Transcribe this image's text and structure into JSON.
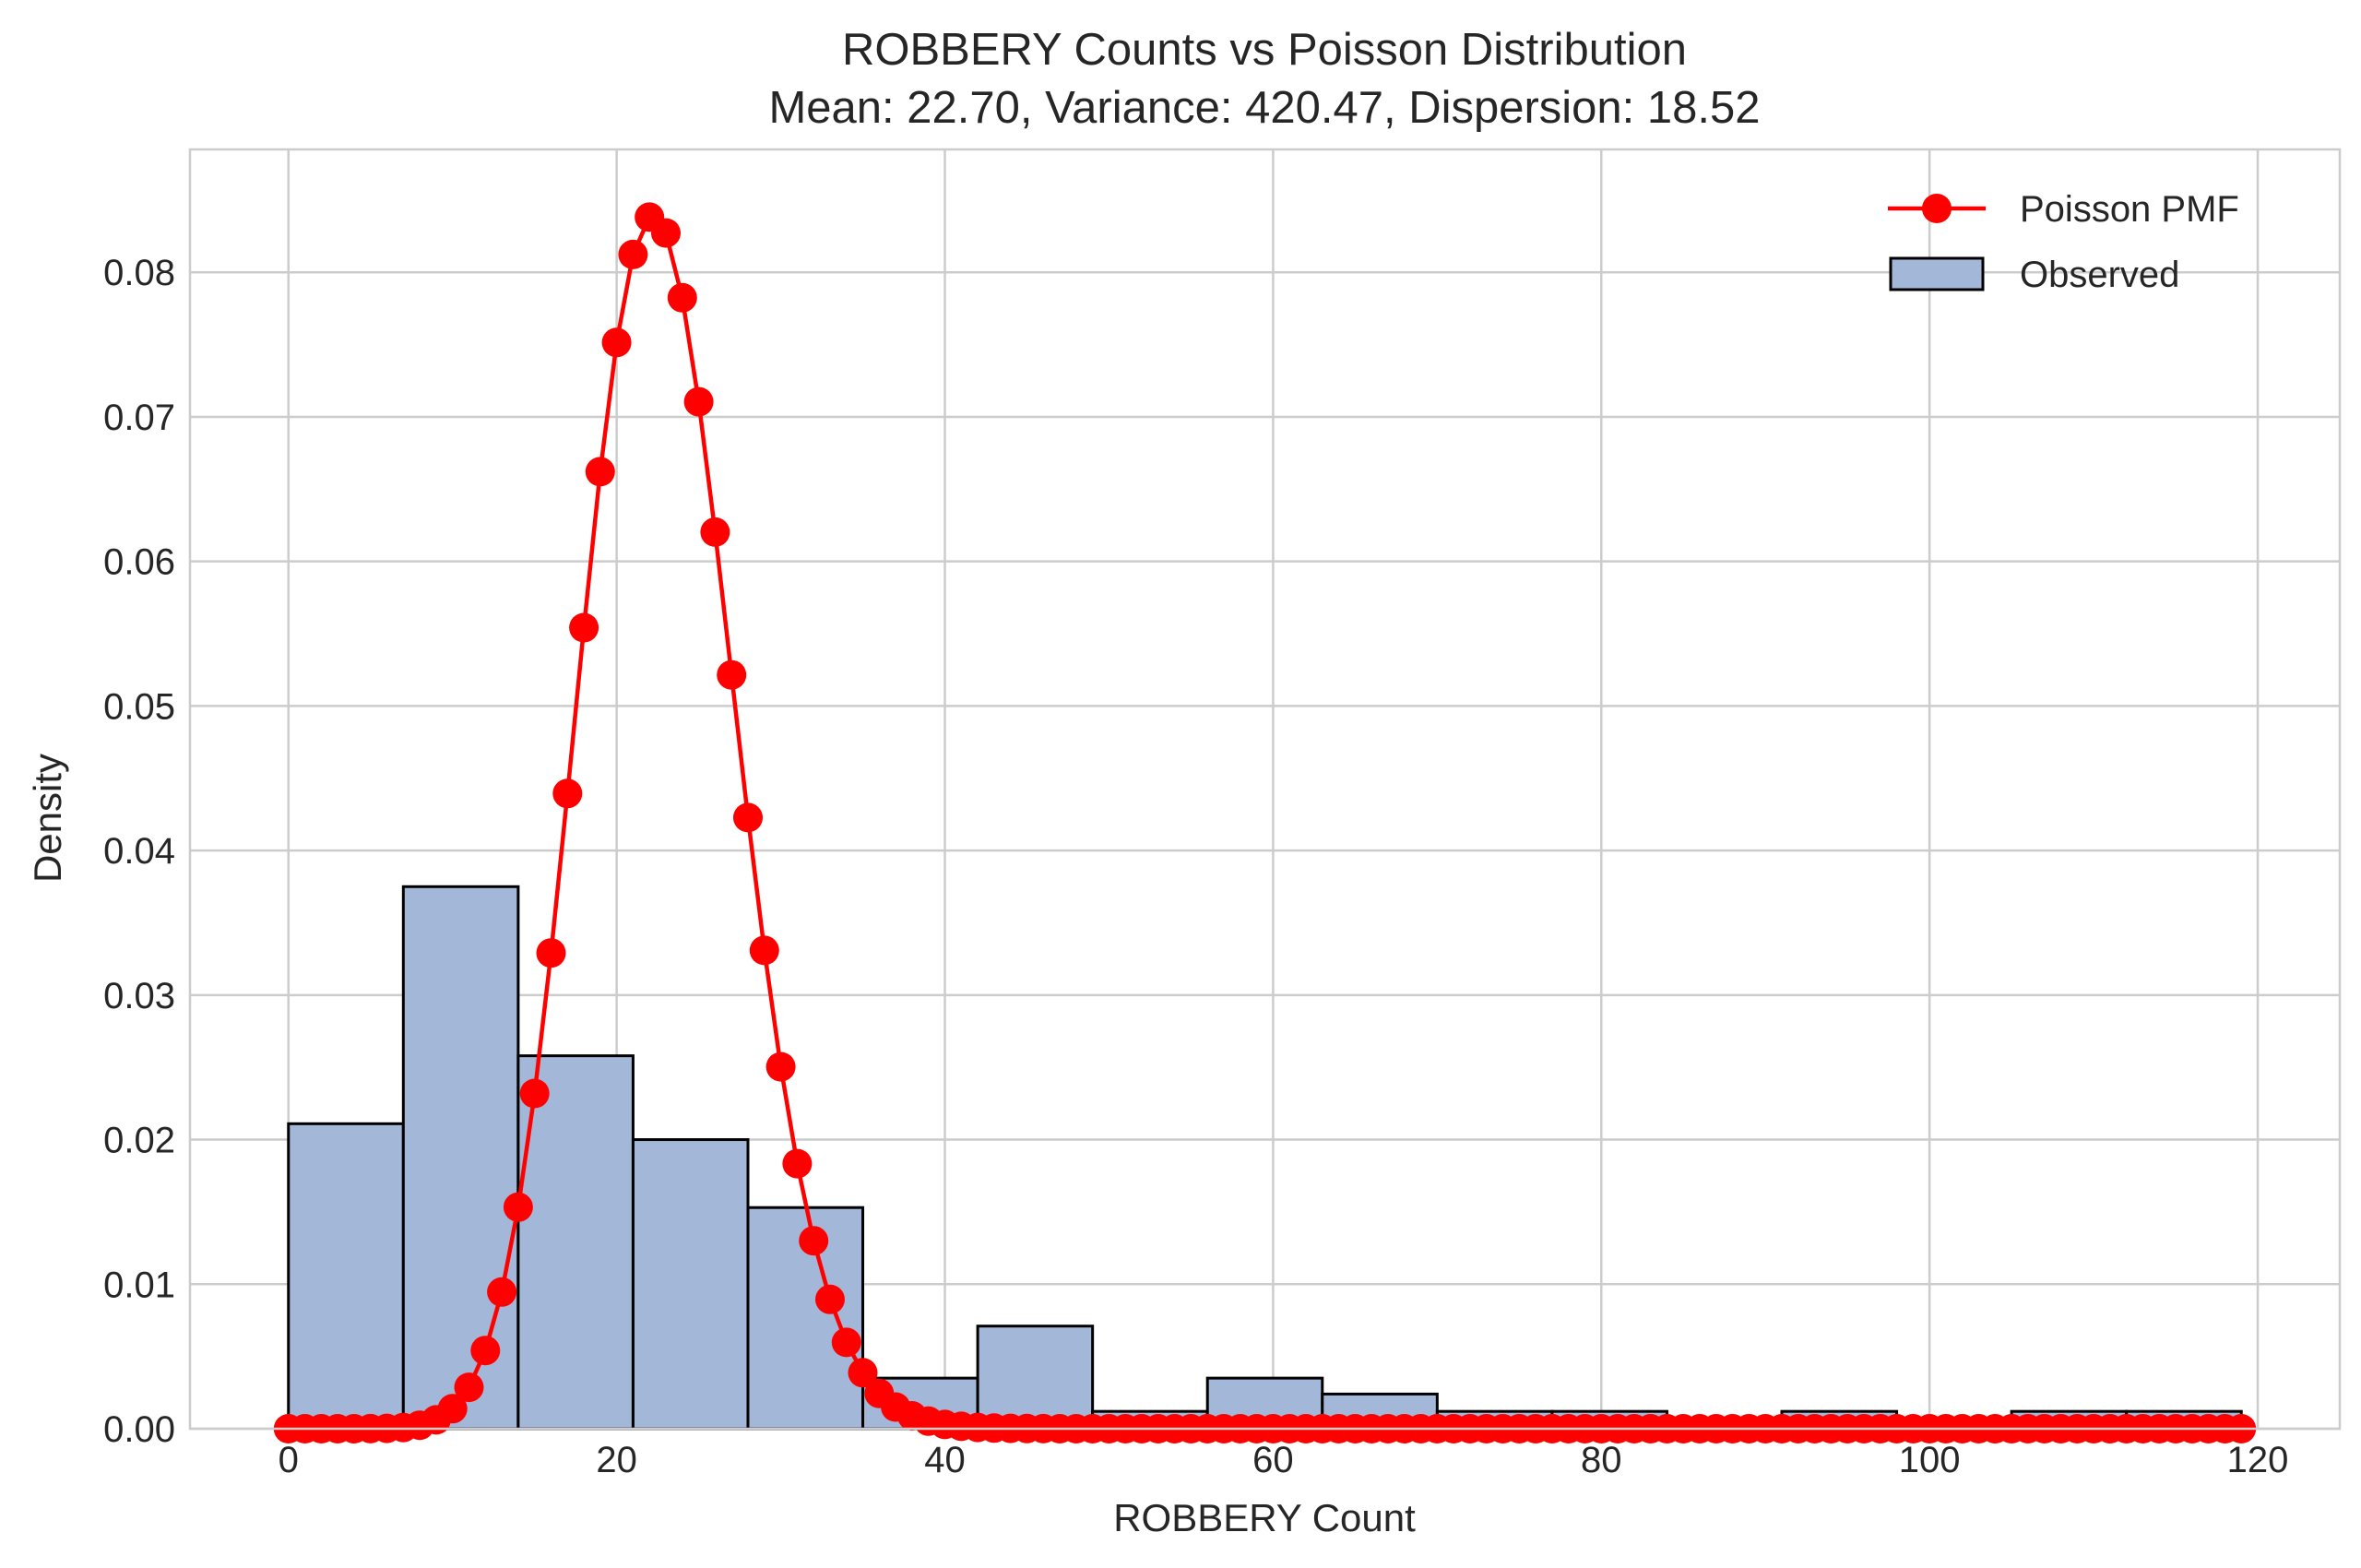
{
  "chart_data": {
    "type": "histogram+line",
    "title_line1": "ROBBERY Counts vs Poisson Distribution",
    "title_line2": "Mean: 22.70, Variance: 420.47, Dispersion: 18.52",
    "xlabel": "ROBBERY Count",
    "ylabel": "Density",
    "xlim": [
      -6,
      125
    ],
    "ylim": [
      0,
      0.0885
    ],
    "xticks": [
      0,
      20,
      40,
      60,
      80,
      100,
      120
    ],
    "yticks": [
      0.0,
      0.01,
      0.02,
      0.03,
      0.04,
      0.05,
      0.06,
      0.07,
      0.08
    ],
    "xtick_labels": [
      "0",
      "20",
      "40",
      "60",
      "80",
      "100",
      "120"
    ],
    "ytick_labels": [
      "0.00",
      "0.01",
      "0.02",
      "0.03",
      "0.04",
      "0.05",
      "0.06",
      "0.07",
      "0.08"
    ],
    "grid": true,
    "legend_position": "top-right",
    "histogram": {
      "name": "Observed",
      "color": "#a3b7d8",
      "edge_color": "#000000",
      "bins": [
        {
          "x0": 0,
          "x1": 7,
          "density": 0.0211
        },
        {
          "x0": 7,
          "x1": 14,
          "density": 0.0375
        },
        {
          "x0": 14,
          "x1": 21,
          "density": 0.0258
        },
        {
          "x0": 21,
          "x1": 28,
          "density": 0.02
        },
        {
          "x0": 28,
          "x1": 35,
          "density": 0.0153
        },
        {
          "x0": 35,
          "x1": 42,
          "density": 0.0035
        },
        {
          "x0": 42,
          "x1": 49,
          "density": 0.0071
        },
        {
          "x0": 49,
          "x1": 56,
          "density": 0.0012
        },
        {
          "x0": 56,
          "x1": 63,
          "density": 0.0035
        },
        {
          "x0": 63,
          "x1": 70,
          "density": 0.0024
        },
        {
          "x0": 70,
          "x1": 77,
          "density": 0.0012
        },
        {
          "x0": 77,
          "x1": 84,
          "density": 0.0012
        },
        {
          "x0": 84,
          "x1": 91,
          "density": 0.0
        },
        {
          "x0": 91,
          "x1": 98,
          "density": 0.0012
        },
        {
          "x0": 98,
          "x1": 105,
          "density": 0.0
        },
        {
          "x0": 105,
          "x1": 112,
          "density": 0.0012
        },
        {
          "x0": 112,
          "x1": 119,
          "density": 0.0012
        }
      ]
    },
    "poisson": {
      "name": "Poisson PMF",
      "color": "#ff0000",
      "lambda": 22.7,
      "x_min": 0,
      "x_max": 119
    }
  }
}
